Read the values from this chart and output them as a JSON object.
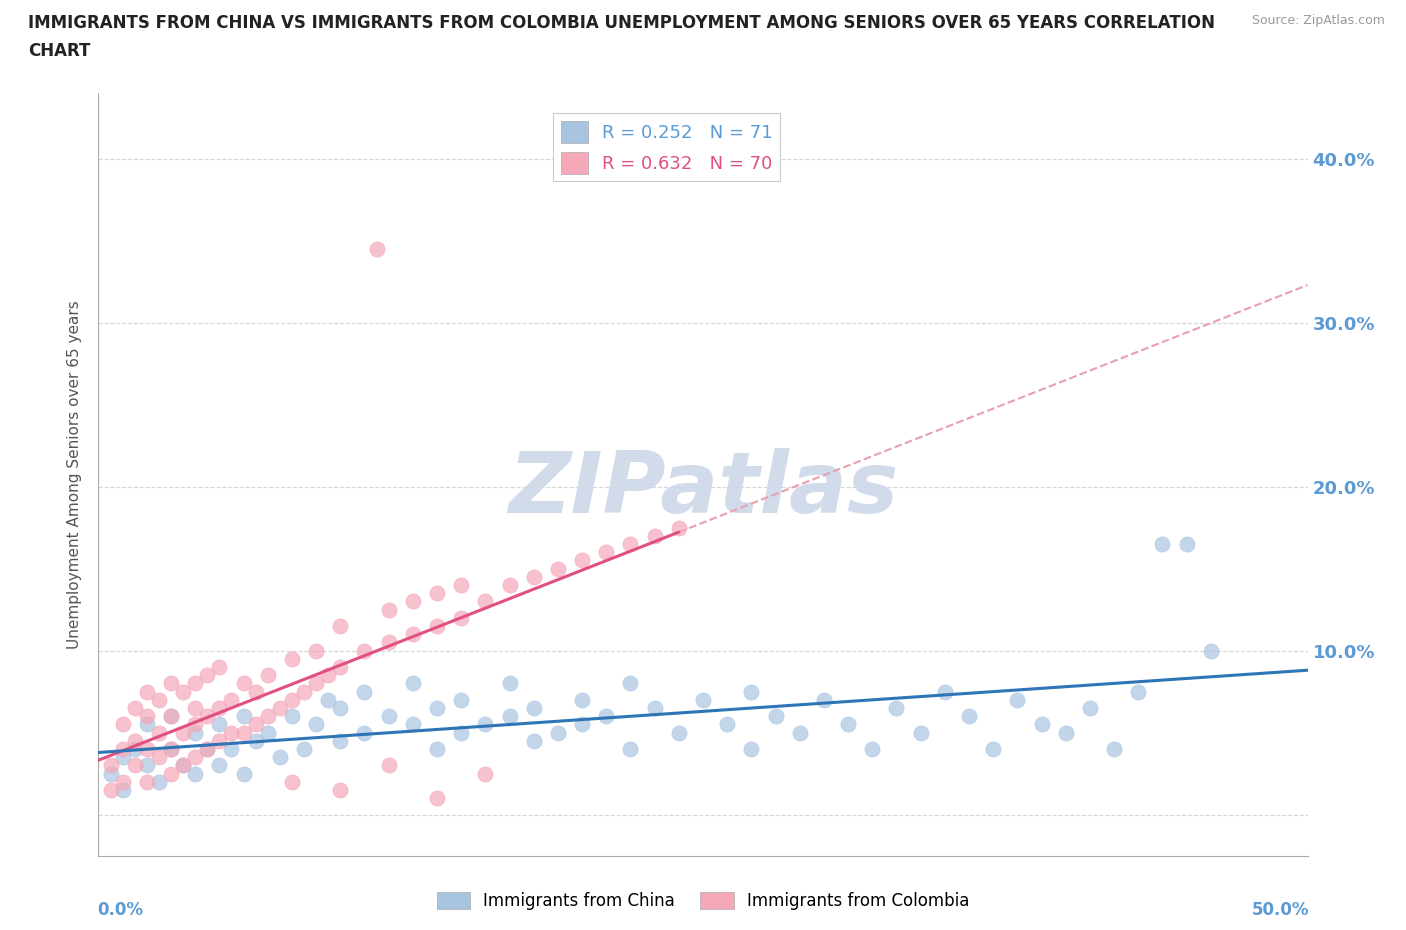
{
  "title": "IMMIGRANTS FROM CHINA VS IMMIGRANTS FROM COLOMBIA UNEMPLOYMENT AMONG SENIORS OVER 65 YEARS CORRELATION\nCHART",
  "source": "Source: ZipAtlas.com",
  "ylabel": "Unemployment Among Seniors over 65 years",
  "ytick_vals": [
    0.0,
    0.1,
    0.2,
    0.3,
    0.4
  ],
  "ytick_labels": [
    "",
    "10.0%",
    "20.0%",
    "30.0%",
    "40.0%"
  ],
  "xrange": [
    0.0,
    0.5
  ],
  "yrange": [
    -0.025,
    0.44
  ],
  "china_R": 0.252,
  "china_N": 71,
  "colombia_R": 0.632,
  "colombia_N": 70,
  "china_color": "#a8c4e0",
  "colombia_color": "#f4a8b8",
  "china_trend_color": "#2e75b6",
  "colombia_trend_color": "#e05080",
  "colombia_dashed_color": "#e8a0b0",
  "watermark": "ZIPatlas",
  "watermark_color": "#cdd8e8",
  "background_color": "#ffffff",
  "grid_color": "#cccccc"
}
